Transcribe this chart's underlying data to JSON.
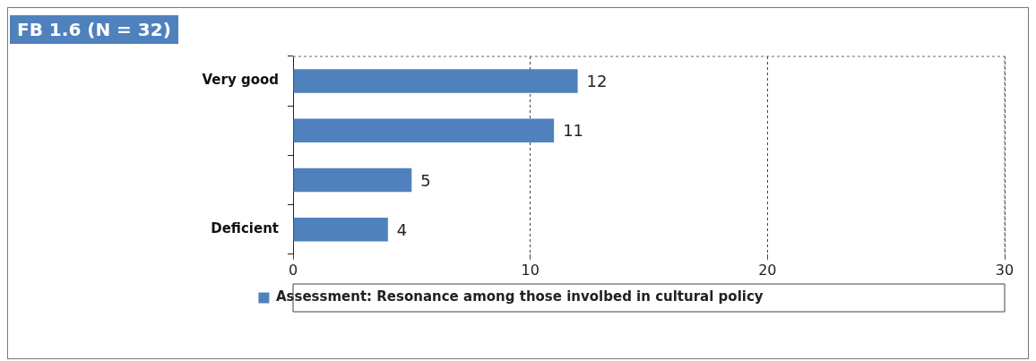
{
  "chart_data": {
    "type": "bar",
    "orientation": "horizontal",
    "title": "FB 1.6 (N = 32)",
    "categories": [
      "Very good",
      null,
      null,
      "Deficient"
    ],
    "series": [
      {
        "name": "Assessment: Resonance among those involbed in cultural policy",
        "color": "#4f81bd",
        "values": [
          12,
          11,
          5,
          4
        ]
      }
    ],
    "xlim": [
      0,
      30
    ],
    "xticks": [
      0,
      10,
      20,
      30
    ],
    "grid": "x",
    "legend": "bottom",
    "data_labels": true
  }
}
